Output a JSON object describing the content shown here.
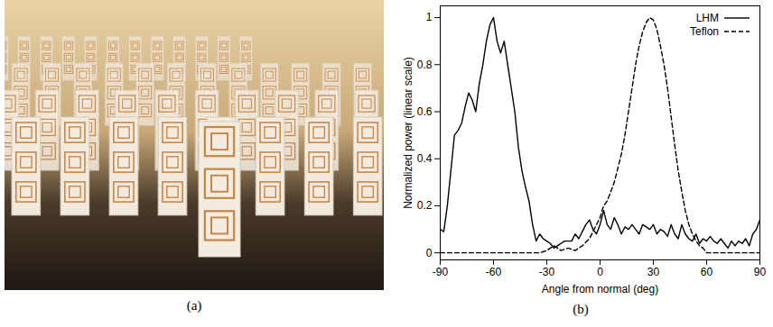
{
  "photo": {
    "caption": "(a)"
  },
  "chart_data": {
    "type": "line",
    "caption": "(b)",
    "x_label": "Angle from normal (deg)",
    "y_label": "Normalized power (linear scale)",
    "xlim": [
      -90,
      90
    ],
    "xticks": [
      -90,
      -60,
      -30,
      0,
      30,
      60,
      90
    ],
    "ylim": [
      -0.03,
      1.05
    ],
    "yticks": [
      0,
      0.2,
      0.4,
      0.6,
      0.8,
      1
    ],
    "legend": "upper right",
    "grid": false,
    "series": [
      {
        "name": "LHM",
        "color": "#000000",
        "line_style": "solid",
        "x": [
          -90,
          -88,
          -86,
          -84,
          -82,
          -80,
          -78,
          -76,
          -74,
          -72,
          -70,
          -68,
          -66,
          -64,
          -62,
          -60,
          -58,
          -56,
          -54,
          -52,
          -50,
          -48,
          -46,
          -44,
          -42,
          -40,
          -38,
          -36,
          -34,
          -32,
          -30,
          -28,
          -26,
          -24,
          -22,
          -20,
          -18,
          -16,
          -14,
          -12,
          -10,
          -8,
          -6,
          -4,
          -2,
          0,
          2,
          4,
          6,
          8,
          10,
          12,
          14,
          16,
          18,
          20,
          22,
          24,
          26,
          28,
          30,
          32,
          34,
          36,
          38,
          40,
          42,
          44,
          46,
          48,
          50,
          52,
          54,
          56,
          58,
          60,
          62,
          64,
          66,
          68,
          70,
          72,
          74,
          76,
          78,
          80,
          82,
          84,
          86,
          88,
          90
        ],
        "values": [
          0.1,
          0.09,
          0.2,
          0.35,
          0.5,
          0.52,
          0.55,
          0.62,
          0.68,
          0.65,
          0.6,
          0.72,
          0.8,
          0.9,
          0.97,
          1.0,
          0.9,
          0.85,
          0.9,
          0.8,
          0.7,
          0.6,
          0.45,
          0.35,
          0.28,
          0.22,
          0.12,
          0.05,
          0.08,
          0.06,
          0.05,
          0.04,
          0.02,
          0.03,
          0.04,
          0.05,
          0.05,
          0.05,
          0.08,
          0.06,
          0.09,
          0.12,
          0.14,
          0.1,
          0.08,
          0.12,
          0.18,
          0.12,
          0.1,
          0.15,
          0.12,
          0.08,
          0.11,
          0.1,
          0.12,
          0.1,
          0.08,
          0.12,
          0.11,
          0.1,
          0.12,
          0.08,
          0.1,
          0.09,
          0.07,
          0.12,
          0.08,
          0.06,
          0.12,
          0.08,
          0.06,
          0.05,
          0.08,
          0.04,
          0.06,
          0.05,
          0.07,
          0.05,
          0.04,
          0.06,
          0.04,
          0.02,
          0.05,
          0.03,
          0.05,
          0.04,
          0.06,
          0.03,
          0.08,
          0.1,
          0.14
        ]
      },
      {
        "name": "Teflon",
        "color": "#000000",
        "line_style": "dashed",
        "x": [
          -90,
          -80,
          -70,
          -60,
          -50,
          -40,
          -34,
          -30,
          -26,
          -22,
          -18,
          -14,
          -10,
          -6,
          -2,
          0,
          2,
          4,
          6,
          8,
          10,
          12,
          14,
          16,
          18,
          20,
          22,
          24,
          26,
          28,
          30,
          32,
          34,
          36,
          38,
          40,
          42,
          44,
          46,
          48,
          50,
          52,
          54,
          56,
          58,
          60,
          70,
          80,
          90
        ],
        "values": [
          0,
          0,
          0,
          0,
          0,
          0,
          0,
          0.01,
          0.03,
          0.01,
          0.02,
          0.01,
          0.03,
          0.06,
          0.12,
          0.15,
          0.2,
          0.22,
          0.26,
          0.3,
          0.36,
          0.42,
          0.5,
          0.6,
          0.7,
          0.8,
          0.88,
          0.94,
          0.98,
          1.0,
          0.99,
          0.95,
          0.88,
          0.8,
          0.7,
          0.58,
          0.46,
          0.35,
          0.26,
          0.18,
          0.12,
          0.08,
          0.05,
          0.03,
          0.02,
          0,
          0,
          0,
          0
        ]
      }
    ]
  }
}
